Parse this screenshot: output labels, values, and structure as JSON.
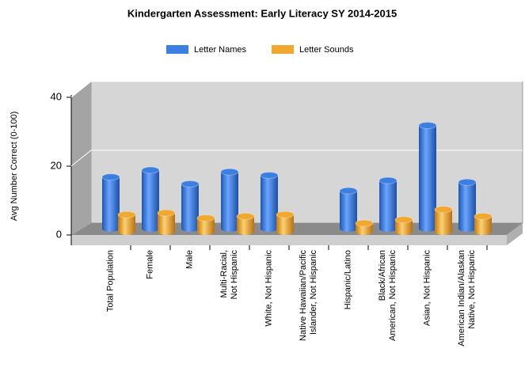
{
  "chart_data": {
    "type": "bar3d",
    "title": "Kindergarten Assessment: Early Literacy SY 2014-2015",
    "y_label": "Avg Number Correct (0-100)",
    "categories": [
      "Total Population",
      "Female",
      "Male",
      "Multi-Racial,\nNot Hispanic",
      "White, Not Hispanic",
      "Native Hawaiian/Pacific\nIslander, Not Hispanic",
      "Hispanic/Latino",
      "Black/African\nAmerican, Not Hispanic",
      "Asian, Not Hispanic",
      "American Indian/Alaskan\nNative, Not Hispanic"
    ],
    "series": [
      {
        "name": "Letter Names",
        "color": "#3d7fe0",
        "values": [
          15,
          17,
          13,
          16.5,
          15.5,
          null,
          11,
          14,
          30,
          13.5
        ]
      },
      {
        "name": "Letter Sounds",
        "color": "#f0a830",
        "values": [
          5,
          5.5,
          4,
          4.5,
          5,
          null,
          2.5,
          3.5,
          6.5,
          4.5
        ]
      }
    ],
    "ylim": [
      0,
      40
    ],
    "yticks": [
      0,
      20,
      40
    ],
    "grid": true,
    "legend": "top"
  }
}
